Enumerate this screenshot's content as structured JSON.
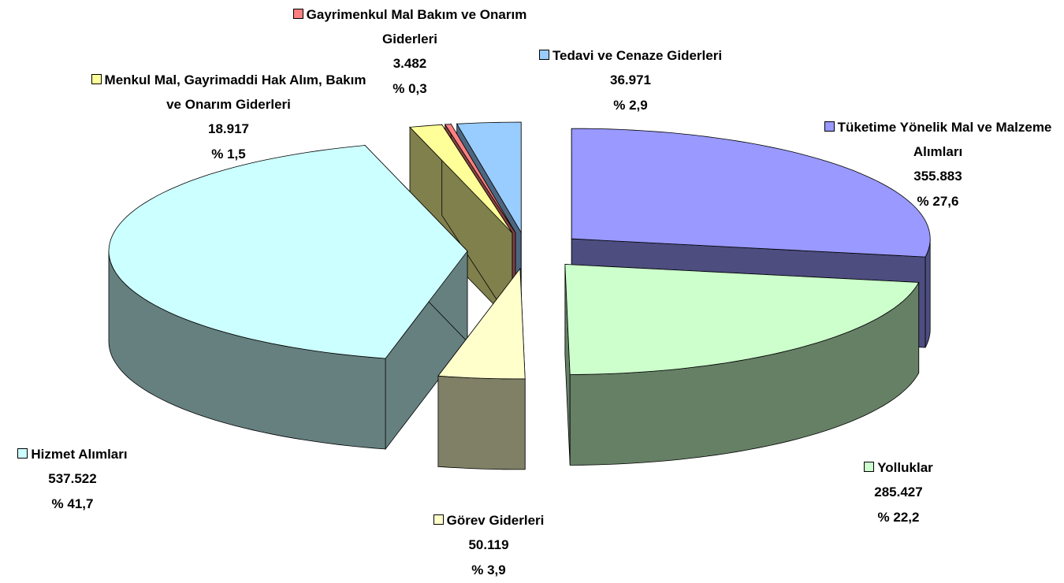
{
  "chart_data": {
    "type": "pie",
    "categories": [
      "Tüketime Yönelik Mal ve Malzeme Alımları",
      "Yolluklar",
      "Görev Giderleri",
      "Hizmet Alımları",
      "Menkul Mal, Gayrimaddi Hak Alım, Bakım ve Onarım Giderleri",
      "Gayrimenkul Mal Bakım ve Onarım Giderleri",
      "Tedavi ve Cenaze Giderleri"
    ],
    "values": [
      355883,
      285427,
      50119,
      537522,
      18917,
      3482,
      36971
    ],
    "value_labels": [
      "355.883",
      "285.427",
      "50.119",
      "537.522",
      "18.917",
      "3.482",
      "36.971"
    ],
    "percents": [
      27.6,
      22.2,
      3.9,
      41.7,
      1.5,
      0.3,
      2.9
    ],
    "percent_labels": [
      "% 27,6",
      "% 22,2",
      "% 3,9",
      "% 41,7",
      "% 1,5",
      "% 0,3",
      "% 2,9"
    ],
    "colors": [
      "#9999ff",
      "#ccffcc",
      "#ffffcc",
      "#ccffff",
      "#ffff99",
      "#ff8080",
      "#99ccff"
    ]
  }
}
